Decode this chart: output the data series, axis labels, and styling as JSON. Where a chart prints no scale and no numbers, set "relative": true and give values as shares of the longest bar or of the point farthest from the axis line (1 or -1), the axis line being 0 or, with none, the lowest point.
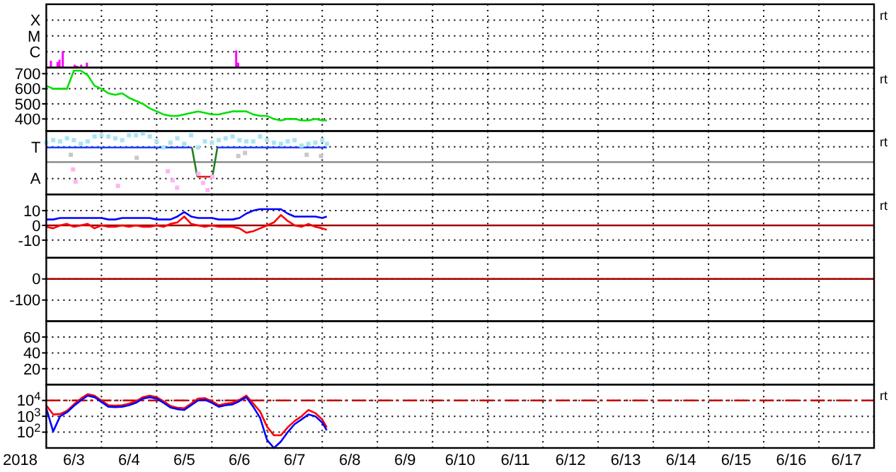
{
  "chart_data": [
    {
      "type": "bar",
      "relative": true,
      "grid": "x",
      "tick_labels": "y",
      "annotations": [
        "X",
        "M",
        "C",
        "rt"
      ],
      "xlim": [
        "2018-06-03",
        "2018-06-18"
      ],
      "xticks": [
        {
          "value": "2018-06-04",
          "label": null
        },
        {
          "value": "2018-06-05",
          "label": null
        },
        {
          "value": "2018-06-06",
          "label": null
        },
        {
          "value": "2018-06-07",
          "label": null
        },
        {
          "value": "2018-06-08",
          "label": null
        },
        {
          "value": "2018-06-09",
          "label": null
        },
        {
          "value": "2018-06-10",
          "label": null
        },
        {
          "value": "2018-06-11",
          "label": null
        },
        {
          "value": "2018-06-12",
          "label": null
        },
        {
          "value": "2018-06-13",
          "label": null
        },
        {
          "value": "2018-06-14",
          "label": null
        },
        {
          "value": "2018-06-15",
          "label": null
        },
        {
          "value": "2018-06-16",
          "label": null
        },
        {
          "value": "2018-06-17",
          "label": null
        }
      ],
      "x": [
        "2018-06-03T02:00",
        "2018-06-03T04:55",
        "2018-06-03T05:45",
        "2018-06-03T07:10",
        "2018-06-03T12:20",
        "2018-06-03T13:20",
        "2018-06-03T15:10",
        "2018-06-03T17:40",
        "2018-06-06T10:35",
        "2018-06-06T11:25"
      ],
      "series": [
        {
          "color": "#ff00ff",
          "values": [
            0.4,
            0.33,
            0.46,
            0.96,
            0.17,
            0.11,
            0.17,
            0.29,
            1,
            0.29
          ]
        }
      ]
    },
    {
      "type": "line",
      "grid": true,
      "tick_labels": "y",
      "annotations": [
        "rt"
      ],
      "xlim": [
        "2018-06-03",
        "2018-06-18"
      ],
      "ylim": [
        320,
        740
      ],
      "yticks": [
        400,
        500,
        600,
        700
      ],
      "xticks": [
        {
          "value": "2018-06-04",
          "label": null
        },
        {
          "value": "2018-06-05",
          "label": null
        },
        {
          "value": "2018-06-06",
          "label": null
        },
        {
          "value": "2018-06-07",
          "label": null
        },
        {
          "value": "2018-06-08",
          "label": null
        },
        {
          "value": "2018-06-09",
          "label": null
        },
        {
          "value": "2018-06-10",
          "label": null
        },
        {
          "value": "2018-06-11",
          "label": null
        },
        {
          "value": "2018-06-12",
          "label": null
        },
        {
          "value": "2018-06-13",
          "label": null
        },
        {
          "value": "2018-06-14",
          "label": null
        },
        {
          "value": "2018-06-15",
          "label": null
        },
        {
          "value": "2018-06-16",
          "label": null
        },
        {
          "value": "2018-06-17",
          "label": null
        }
      ],
      "x": [
        "2018-06-03T00:00",
        "2018-06-03T03:00",
        "2018-06-03T06:00",
        "2018-06-03T09:00",
        "2018-06-03T12:00",
        "2018-06-03T15:00",
        "2018-06-03T18:00",
        "2018-06-03T21:00",
        "2018-06-04T00:00",
        "2018-06-04T03:00",
        "2018-06-04T06:00",
        "2018-06-04T09:00",
        "2018-06-04T12:00",
        "2018-06-04T15:00",
        "2018-06-04T18:00",
        "2018-06-04T21:00",
        "2018-06-05T00:00",
        "2018-06-05T03:00",
        "2018-06-05T06:00",
        "2018-06-05T09:00",
        "2018-06-05T12:00",
        "2018-06-05T15:00",
        "2018-06-05T18:00",
        "2018-06-05T21:00",
        "2018-06-06T00:00",
        "2018-06-06T03:00",
        "2018-06-06T06:00",
        "2018-06-06T09:00",
        "2018-06-06T12:00",
        "2018-06-06T15:00",
        "2018-06-06T18:00",
        "2018-06-06T21:00",
        "2018-06-07T00:00",
        "2018-06-07T03:00",
        "2018-06-07T06:00",
        "2018-06-07T09:00",
        "2018-06-07T12:00",
        "2018-06-07T15:00",
        "2018-06-07T18:00",
        "2018-06-07T21:00",
        "2018-06-08T00:00",
        "2018-06-08T02:00"
      ],
      "series": [
        {
          "color": "#00e000",
          "values": [
            620,
            600,
            600,
            600,
            720,
            720,
            690,
            620,
            600,
            570,
            560,
            570,
            540,
            520,
            500,
            470,
            450,
            430,
            420,
            420,
            430,
            440,
            450,
            440,
            430,
            430,
            440,
            450,
            450,
            450,
            430,
            420,
            420,
            400,
            390,
            400,
            400,
            390,
            390,
            400,
            390,
            390
          ]
        }
      ]
    },
    {
      "type": "line",
      "relative": true,
      "grid": "x",
      "tick_labels": "y",
      "annotations": [
        "T",
        "A",
        "rt"
      ],
      "xlim": [
        "2018-06-03",
        "2018-06-18"
      ],
      "ref_lines": [
        {
          "axis": "y",
          "value": 0.53,
          "color": "#808080"
        }
      ],
      "xticks": [
        {
          "value": "2018-06-04",
          "label": null
        },
        {
          "value": "2018-06-05",
          "label": null
        },
        {
          "value": "2018-06-06",
          "label": null
        },
        {
          "value": "2018-06-07",
          "label": null
        },
        {
          "value": "2018-06-08",
          "label": null
        },
        {
          "value": "2018-06-09",
          "label": null
        },
        {
          "value": "2018-06-10",
          "label": null
        },
        {
          "value": "2018-06-11",
          "label": null
        },
        {
          "value": "2018-06-12",
          "label": null
        },
        {
          "value": "2018-06-13",
          "label": null
        },
        {
          "value": "2018-06-14",
          "label": null
        },
        {
          "value": "2018-06-15",
          "label": null
        },
        {
          "value": "2018-06-16",
          "label": null
        },
        {
          "value": "2018-06-17",
          "label": null
        }
      ],
      "x": [
        "2018-06-03T00:00",
        "2018-06-03T03:00",
        "2018-06-03T06:00",
        "2018-06-03T09:00",
        "2018-06-03T12:00",
        "2018-06-03T15:00",
        "2018-06-03T18:00",
        "2018-06-03T21:00",
        "2018-06-04T00:00",
        "2018-06-04T03:00",
        "2018-06-04T06:00",
        "2018-06-04T09:00",
        "2018-06-04T12:00",
        "2018-06-04T15:00",
        "2018-06-04T18:00",
        "2018-06-04T21:00",
        "2018-06-05T00:00",
        "2018-06-05T03:00",
        "2018-06-05T06:00",
        "2018-06-05T09:00",
        "2018-06-05T12:00",
        "2018-06-05T15:00",
        "2018-06-05T18:00",
        "2018-06-05T21:00",
        "2018-06-06T00:00",
        "2018-06-06T03:00",
        "2018-06-06T06:00",
        "2018-06-06T09:00",
        "2018-06-06T12:00",
        "2018-06-06T15:00",
        "2018-06-06T18:00",
        "2018-06-06T21:00",
        "2018-06-07T00:00",
        "2018-06-07T03:00",
        "2018-06-07T06:00",
        "2018-06-07T09:00",
        "2018-06-07T12:00",
        "2018-06-07T15:00",
        "2018-06-07T18:00",
        "2018-06-07T21:00",
        "2018-06-08T00:00",
        "2018-06-08T02:00"
      ],
      "series": [
        {
          "type": "scatter",
          "color": "#a8e4f4",
          "values": [
            0.85,
            0.89,
            0.87,
            0.92,
            0.89,
            0.83,
            0.87,
            0.95,
            0.97,
            0.95,
            0.92,
            0.89,
            0.97,
            0.97,
            1,
            0.95,
            0.87,
            0.77,
            0.85,
            0.92,
            0.83,
            0.97,
            0.77,
            0.87,
            0.85,
            0.89,
            0.92,
            0.95,
            0.89,
            0.87,
            0.87,
            0.95,
            0.89,
            0.85,
            0.83,
            0.87,
            0.89,
            0.8,
            0.83,
            0.85,
            0.89,
            0.83
          ]
        },
        {
          "type": "scatter",
          "color": "#ffb4f4",
          "x": [
            "2018-06-03T11:40",
            "2018-06-03T12:45",
            "2018-06-04T07:10",
            "2018-06-05T04:50",
            "2018-06-05T06:55",
            "2018-06-05T08:55",
            "2018-06-05T18:10",
            "2018-06-05T20:10",
            "2018-06-05T22:10",
            "2018-06-06T00:15"
          ],
          "values": [
            0.41,
            0.21,
            0.14,
            0.38,
            0.23,
            0.11,
            0.34,
            0.19,
            0.07,
            0.29
          ]
        },
        {
          "type": "scatter",
          "color": "#c8c8c8",
          "x": [
            "2018-06-03T10:40",
            "2018-06-04T15:20",
            "2018-06-06T11:30",
            "2018-06-06T14:25",
            "2018-06-07T17:15",
            "2018-06-07T23:30"
          ],
          "values": [
            0.65,
            0.6,
            0.63,
            0.68,
            0.65,
            0.63
          ]
        },
        {
          "color": "#2040ff",
          "x": [
            "2018-06-03T00:00",
            "2018-06-05T15:20"
          ],
          "values": [
            0.77,
            0.77
          ]
        },
        {
          "color": "#208020",
          "x": [
            "2018-06-05T15:20",
            "2018-06-05T17:40"
          ],
          "values": [
            0.77,
            0.29
          ]
        },
        {
          "color": "#e02020",
          "x": [
            "2018-06-05T17:40",
            "2018-06-06T00:15"
          ],
          "values": [
            0.29,
            0.29
          ]
        },
        {
          "color": "#208020",
          "x": [
            "2018-06-06T00:15",
            "2018-06-06T02:25"
          ],
          "values": [
            0.29,
            0.77
          ]
        },
        {
          "color": "#2040ff",
          "x": [
            "2018-06-06T02:25",
            "2018-06-08T02:00"
          ],
          "values": [
            0.77,
            0.77
          ]
        }
      ]
    },
    {
      "type": "line",
      "grid": true,
      "tick_labels": "y",
      "annotations": [
        "rt"
      ],
      "xlim": [
        "2018-06-03",
        "2018-06-18"
      ],
      "ylim": [
        -22,
        21
      ],
      "yticks": [
        10,
        0,
        -10
      ],
      "ref_lines": [
        {
          "axis": "y",
          "value": 0,
          "color": "#a00000"
        }
      ],
      "xticks": [
        {
          "value": "2018-06-04",
          "label": null
        },
        {
          "value": "2018-06-05",
          "label": null
        },
        {
          "value": "2018-06-06",
          "label": null
        },
        {
          "value": "2018-06-07",
          "label": null
        },
        {
          "value": "2018-06-08",
          "label": null
        },
        {
          "value": "2018-06-09",
          "label": null
        },
        {
          "value": "2018-06-10",
          "label": null
        },
        {
          "value": "2018-06-11",
          "label": null
        },
        {
          "value": "2018-06-12",
          "label": null
        },
        {
          "value": "2018-06-13",
          "label": null
        },
        {
          "value": "2018-06-14",
          "label": null
        },
        {
          "value": "2018-06-15",
          "label": null
        },
        {
          "value": "2018-06-16",
          "label": null
        },
        {
          "value": "2018-06-17",
          "label": null
        }
      ],
      "x": [
        "2018-06-03T00:00",
        "2018-06-03T03:00",
        "2018-06-03T06:00",
        "2018-06-03T09:00",
        "2018-06-03T12:00",
        "2018-06-03T15:00",
        "2018-06-03T18:00",
        "2018-06-03T21:00",
        "2018-06-04T00:00",
        "2018-06-04T03:00",
        "2018-06-04T06:00",
        "2018-06-04T09:00",
        "2018-06-04T12:00",
        "2018-06-04T15:00",
        "2018-06-04T18:00",
        "2018-06-04T21:00",
        "2018-06-05T00:00",
        "2018-06-05T03:00",
        "2018-06-05T06:00",
        "2018-06-05T09:00",
        "2018-06-05T12:00",
        "2018-06-05T15:00",
        "2018-06-05T18:00",
        "2018-06-05T21:00",
        "2018-06-06T00:00",
        "2018-06-06T03:00",
        "2018-06-06T06:00",
        "2018-06-06T09:00",
        "2018-06-06T12:00",
        "2018-06-06T15:00",
        "2018-06-06T18:00",
        "2018-06-06T21:00",
        "2018-06-07T00:00",
        "2018-06-07T03:00",
        "2018-06-07T06:00",
        "2018-06-07T09:00",
        "2018-06-07T12:00",
        "2018-06-07T15:00",
        "2018-06-07T18:00",
        "2018-06-07T21:00",
        "2018-06-08T00:00",
        "2018-06-08T02:00"
      ],
      "series": [
        {
          "color": "#ff0000",
          "values": [
            -1,
            -2,
            0,
            1,
            -1,
            0,
            1,
            -2,
            0,
            -1,
            -1,
            0,
            -1,
            0,
            -1,
            -1,
            0,
            -1,
            1,
            2,
            6,
            1,
            0,
            -1,
            0,
            -1,
            -1,
            -1,
            -2,
            -5,
            -4,
            -2,
            0,
            2,
            7,
            3,
            0,
            -1,
            1,
            -1,
            -2,
            -3
          ]
        },
        {
          "color": "#0000ff",
          "values": [
            4,
            4,
            5,
            5,
            5,
            5,
            5,
            5,
            5,
            4,
            4,
            5,
            5,
            5,
            5,
            5,
            4,
            4,
            4,
            6,
            9,
            6,
            5,
            5,
            5,
            4,
            4,
            4,
            5,
            8,
            10,
            11,
            11,
            11,
            11,
            8,
            6,
            6,
            6,
            6,
            5,
            6
          ]
        }
      ]
    },
    {
      "type": "line",
      "grid": true,
      "tick_labels": "y",
      "xlim": [
        "2018-06-03",
        "2018-06-18"
      ],
      "ylim": [
        -200,
        100
      ],
      "yticks": [
        0,
        -100
      ],
      "ref_lines": [
        {
          "axis": "y",
          "value": 0,
          "color": "#a00000"
        }
      ],
      "xticks": [
        {
          "value": "2018-06-04",
          "label": null
        },
        {
          "value": "2018-06-05",
          "label": null
        },
        {
          "value": "2018-06-06",
          "label": null
        },
        {
          "value": "2018-06-07",
          "label": null
        },
        {
          "value": "2018-06-08",
          "label": null
        },
        {
          "value": "2018-06-09",
          "label": null
        },
        {
          "value": "2018-06-10",
          "label": null
        },
        {
          "value": "2018-06-11",
          "label": null
        },
        {
          "value": "2018-06-12",
          "label": null
        },
        {
          "value": "2018-06-13",
          "label": null
        },
        {
          "value": "2018-06-14",
          "label": null
        },
        {
          "value": "2018-06-15",
          "label": null
        },
        {
          "value": "2018-06-16",
          "label": null
        },
        {
          "value": "2018-06-17",
          "label": null
        }
      ]
    },
    {
      "type": "line",
      "grid": true,
      "tick_labels": "y",
      "xlim": [
        "2018-06-03",
        "2018-06-18"
      ],
      "ylim": [
        0,
        80
      ],
      "yticks": [
        60,
        40,
        20
      ],
      "xticks": [
        {
          "value": "2018-06-04",
          "label": null
        },
        {
          "value": "2018-06-05",
          "label": null
        },
        {
          "value": "2018-06-06",
          "label": null
        },
        {
          "value": "2018-06-07",
          "label": null
        },
        {
          "value": "2018-06-08",
          "label": null
        },
        {
          "value": "2018-06-09",
          "label": null
        },
        {
          "value": "2018-06-10",
          "label": null
        },
        {
          "value": "2018-06-11",
          "label": null
        },
        {
          "value": "2018-06-12",
          "label": null
        },
        {
          "value": "2018-06-13",
          "label": null
        },
        {
          "value": "2018-06-14",
          "label": null
        },
        {
          "value": "2018-06-15",
          "label": null
        },
        {
          "value": "2018-06-16",
          "label": null
        },
        {
          "value": "2018-06-17",
          "label": null
        }
      ]
    },
    {
      "type": "line",
      "log": true,
      "grid": true,
      "annotations": [
        "rt"
      ],
      "xlabel": "2018",
      "xlim": [
        "2018-06-03",
        "2018-06-18"
      ],
      "ylim": [
        10,
        100000
      ],
      "yticks": [
        {
          "value": 10000,
          "label": "10$^{4}$"
        },
        {
          "value": 1000,
          "label": "10$^{3}$"
        },
        {
          "value": 100,
          "label": "10$^{2}$"
        }
      ],
      "ref_lines": [
        {
          "axis": "y",
          "value": 10000,
          "color": "#c00000",
          "line_style": "dashed"
        }
      ],
      "xticks": [
        {
          "value": "2018-06-03T12:00",
          "label": "6/3"
        },
        {
          "value": "2018-06-04",
          "label": null
        },
        {
          "value": "2018-06-04T12:00",
          "label": "6/4"
        },
        {
          "value": "2018-06-05",
          "label": null
        },
        {
          "value": "2018-06-05T12:00",
          "label": "6/5"
        },
        {
          "value": "2018-06-06",
          "label": null
        },
        {
          "value": "2018-06-06T12:00",
          "label": "6/6"
        },
        {
          "value": "2018-06-07",
          "label": null
        },
        {
          "value": "2018-06-07T12:00",
          "label": "6/7"
        },
        {
          "value": "2018-06-08",
          "label": null
        },
        {
          "value": "2018-06-08T12:00",
          "label": "6/8"
        },
        {
          "value": "2018-06-09",
          "label": null
        },
        {
          "value": "2018-06-09T12:00",
          "label": "6/9"
        },
        {
          "value": "2018-06-10",
          "label": null
        },
        {
          "value": "2018-06-10T12:00",
          "label": "6/10"
        },
        {
          "value": "2018-06-11",
          "label": null
        },
        {
          "value": "2018-06-11T12:00",
          "label": "6/11"
        },
        {
          "value": "2018-06-12",
          "label": null
        },
        {
          "value": "2018-06-12T12:00",
          "label": "6/12"
        },
        {
          "value": "2018-06-13",
          "label": null
        },
        {
          "value": "2018-06-13T12:00",
          "label": "6/13"
        },
        {
          "value": "2018-06-14",
          "label": null
        },
        {
          "value": "2018-06-14T12:00",
          "label": "6/14"
        },
        {
          "value": "2018-06-15",
          "label": null
        },
        {
          "value": "2018-06-15T12:00",
          "label": "6/15"
        },
        {
          "value": "2018-06-16",
          "label": null
        },
        {
          "value": "2018-06-16T12:00",
          "label": "6/16"
        },
        {
          "value": "2018-06-17",
          "label": null
        },
        {
          "value": "2018-06-17T12:00",
          "label": "6/17"
        }
      ],
      "x": [
        "2018-06-03T00:00",
        "2018-06-03T03:00",
        "2018-06-03T06:00",
        "2018-06-03T09:00",
        "2018-06-03T12:00",
        "2018-06-03T15:00",
        "2018-06-03T18:00",
        "2018-06-03T21:00",
        "2018-06-04T00:00",
        "2018-06-04T03:00",
        "2018-06-04T06:00",
        "2018-06-04T09:00",
        "2018-06-04T12:00",
        "2018-06-04T15:00",
        "2018-06-04T18:00",
        "2018-06-04T21:00",
        "2018-06-05T00:00",
        "2018-06-05T03:00",
        "2018-06-05T06:00",
        "2018-06-05T09:00",
        "2018-06-05T12:00",
        "2018-06-05T15:00",
        "2018-06-05T18:00",
        "2018-06-05T21:00",
        "2018-06-06T00:00",
        "2018-06-06T03:00",
        "2018-06-06T06:00",
        "2018-06-06T09:00",
        "2018-06-06T12:00",
        "2018-06-06T15:00",
        "2018-06-06T18:00",
        "2018-06-06T21:00",
        "2018-06-07T00:00",
        "2018-06-07T03:00",
        "2018-06-07T06:00",
        "2018-06-07T09:00",
        "2018-06-07T12:00",
        "2018-06-07T15:00",
        "2018-06-07T18:00",
        "2018-06-07T21:00",
        "2018-06-08T00:00",
        "2018-06-08T02:00"
      ],
      "series": [
        {
          "color": "#ff0000",
          "values": [
            4900,
            1300,
            1400,
            2200,
            5600,
            13000,
            25000,
            20000,
            10000,
            5000,
            4700,
            5000,
            6300,
            8900,
            16000,
            20000,
            16000,
            8900,
            4500,
            3500,
            3200,
            6300,
            13000,
            14000,
            8900,
            5000,
            6300,
            7100,
            11000,
            20000,
            6300,
            2000,
            220,
            63,
            63,
            200,
            500,
            1000,
            2500,
            1600,
            630,
            200
          ]
        },
        {
          "color": "#0000ff",
          "values": [
            3200,
            110,
            1000,
            1800,
            4500,
            10000,
            20000,
            16000,
            8000,
            4000,
            3800,
            4000,
            5000,
            7100,
            13000,
            16000,
            13000,
            7100,
            3600,
            2800,
            2500,
            5000,
            10000,
            11000,
            7100,
            4000,
            5000,
            5600,
            9000,
            16000,
            4000,
            800,
            32,
            10,
            25,
            100,
            320,
            630,
            1300,
            1000,
            400,
            130
          ]
        }
      ]
    }
  ]
}
